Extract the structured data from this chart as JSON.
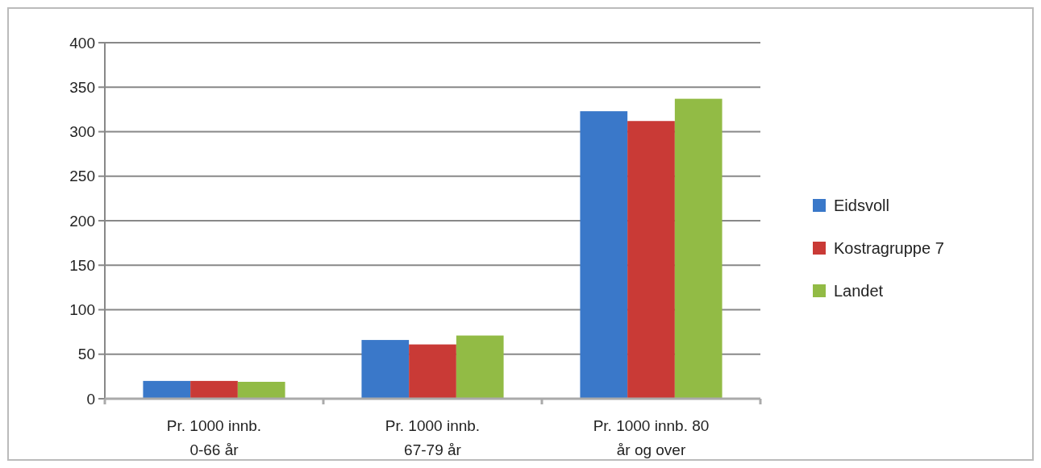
{
  "chart_data": {
    "type": "bar",
    "categories": [
      "Pr. 1000 innb. 0-66 år",
      "Pr. 1000 innb. 67-79 år",
      "Pr. 1000 innb. 80 år og over"
    ],
    "series": [
      {
        "name": "Eidsvoll",
        "color": "#3a78c9",
        "values": [
          20,
          66,
          323
        ]
      },
      {
        "name": "Kostragruppe 7",
        "color": "#c93a36",
        "values": [
          20,
          61,
          312
        ]
      },
      {
        "name": "Landet",
        "color": "#92bb45",
        "values": [
          19,
          71,
          337
        ]
      }
    ],
    "ylim": [
      0,
      400
    ],
    "yticks": [
      0,
      50,
      100,
      150,
      200,
      250,
      300,
      350,
      400
    ],
    "grid": "y",
    "legend": "right"
  }
}
